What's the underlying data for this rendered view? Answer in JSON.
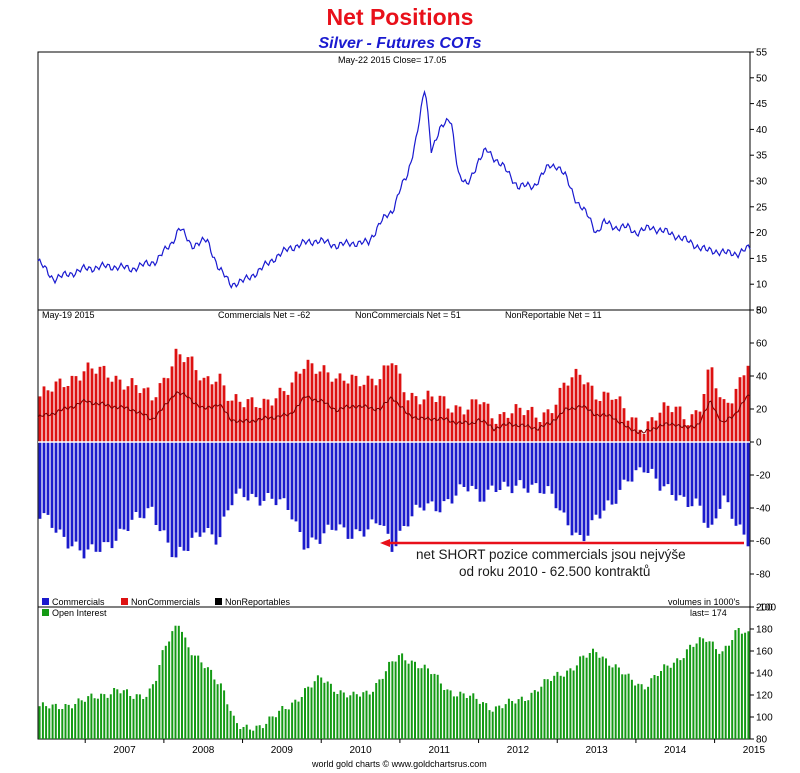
{
  "header": {
    "title": "Net Positions",
    "subtitle": "Silver - Futures COTs"
  },
  "colors": {
    "title": "#e8101a",
    "subtitle": "#1a1ad0",
    "price_line": "#1a1ad0",
    "commercials": "#1a1acc",
    "noncommercials": "#dd1111",
    "nonreportables": "#000000",
    "open_interest": "#149a14",
    "annotation": "#e8101a"
  },
  "chart_data": [
    {
      "type": "line",
      "panel": "price",
      "info": "May-22  2015   Close= 17.05",
      "ylim": [
        5,
        55
      ],
      "yticks": [
        "5",
        "10",
        "15",
        "20",
        "25",
        "30",
        "35",
        "40",
        "45",
        "50",
        "55"
      ],
      "x_years": [
        2006.4,
        2015.45
      ],
      "x": [
        2006.4,
        2006.6,
        2006.8,
        2007.0,
        2007.3,
        2007.6,
        2007.9,
        2008.1,
        2008.2,
        2008.35,
        2008.55,
        2008.7,
        2008.85,
        2009.0,
        2009.2,
        2009.4,
        2009.6,
        2009.8,
        2009.95,
        2010.2,
        2010.4,
        2010.6,
        2010.75,
        2010.9,
        2011.0,
        2011.1,
        2011.2,
        2011.32,
        2011.4,
        2011.5,
        2011.65,
        2011.75,
        2011.85,
        2012.0,
        2012.1,
        2012.3,
        2012.5,
        2012.7,
        2012.9,
        2013.0,
        2013.1,
        2013.25,
        2013.4,
        2013.5,
        2013.6,
        2013.75,
        2013.9,
        2014.0,
        2014.2,
        2014.5,
        2014.7,
        2014.9,
        2015.0,
        2015.15,
        2015.3,
        2015.45
      ],
      "values": [
        14.5,
        11,
        12,
        13,
        13.5,
        13,
        14.5,
        18,
        21,
        17.5,
        18.5,
        13,
        10,
        10.5,
        12.5,
        15,
        17,
        18,
        18.5,
        17.5,
        18,
        18,
        22,
        24,
        28.5,
        31,
        38,
        48,
        36,
        40,
        42,
        31,
        29,
        34,
        36,
        33,
        29,
        29,
        33,
        33,
        31,
        26,
        23,
        20,
        22,
        21,
        21,
        20,
        21,
        19.5,
        18,
        16.5,
        16.5,
        16,
        16,
        17.05
      ]
    },
    {
      "type": "bar",
      "panel": "net_positions",
      "info": "May-19  2015",
      "labels": [
        "Commercials Net = -62",
        "NonCommercials Net = 51",
        "NonReportable Net = 11"
      ],
      "legend": [
        "Commercials",
        "NonCommercials",
        "NonReportables"
      ],
      "units": "volumes in 1000's",
      "ylim": [
        -100,
        80
      ],
      "yticks": [
        "-100",
        "-80",
        "-60",
        "-40",
        "-20",
        "0",
        "20",
        "40",
        "60",
        "80"
      ],
      "x": [
        2006.4,
        2006.6,
        2006.8,
        2007.0,
        2007.3,
        2007.6,
        2007.85,
        2008.0,
        2008.15,
        2008.3,
        2008.5,
        2008.7,
        2008.85,
        2009.0,
        2009.3,
        2009.6,
        2009.8,
        2010.0,
        2010.2,
        2010.4,
        2010.6,
        2010.75,
        2010.9,
        2011.1,
        2011.3,
        2011.5,
        2011.7,
        2011.9,
        2012.0,
        2012.2,
        2012.4,
        2012.55,
        2012.75,
        2012.9,
        2013.1,
        2013.3,
        2013.5,
        2013.7,
        2013.9,
        2014.1,
        2014.3,
        2014.5,
        2014.65,
        2014.8,
        2014.95,
        2015.1,
        2015.25,
        2015.4,
        2015.45
      ],
      "noncommercials": [
        27,
        32,
        38,
        45,
        40,
        36,
        25,
        38,
        55,
        50,
        36,
        42,
        25,
        22,
        26,
        30,
        50,
        45,
        35,
        40,
        38,
        36,
        50,
        30,
        25,
        26,
        22,
        20,
        25,
        15,
        20,
        18,
        15,
        20,
        35,
        40,
        30,
        28,
        15,
        10,
        18,
        20,
        15,
        20,
        45,
        20,
        30,
        48,
        51
      ],
      "commercials": [
        -45,
        -50,
        -60,
        -70,
        -60,
        -50,
        -40,
        -55,
        -72,
        -65,
        -50,
        -60,
        -38,
        -30,
        -35,
        -40,
        -62,
        -60,
        -50,
        -55,
        -55,
        -48,
        -62,
        -48,
        -40,
        -38,
        -32,
        -28,
        -35,
        -25,
        -30,
        -28,
        -25,
        -30,
        -50,
        -58,
        -45,
        -40,
        -20,
        -15,
        -28,
        -30,
        -35,
        -40,
        -58,
        -30,
        -45,
        -62,
        -62
      ],
      "annotation": [
        "net SHORT pozice commercials jsou nejvýše",
        "od roku 2010 - 62.500 kontraktů"
      ],
      "annotation_level": -65
    },
    {
      "type": "bar",
      "panel": "open_interest",
      "legend": [
        "Open Interest"
      ],
      "info": "last= 174",
      "ylim": [
        80,
        200
      ],
      "yticks": [
        "80",
        "100",
        "120",
        "140",
        "160",
        "180",
        "200"
      ],
      "x": [
        2006.4,
        2006.6,
        2006.8,
        2007.0,
        2007.2,
        2007.4,
        2007.6,
        2007.8,
        2007.9,
        2008.0,
        2008.1,
        2008.2,
        2008.3,
        2008.45,
        2008.6,
        2008.75,
        2008.9,
        2009.0,
        2009.2,
        2009.4,
        2009.6,
        2009.8,
        2010.0,
        2010.2,
        2010.4,
        2010.6,
        2010.75,
        2010.85,
        2011.0,
        2011.2,
        2011.4,
        2011.6,
        2011.8,
        2012.0,
        2012.2,
        2012.4,
        2012.6,
        2012.8,
        2013.0,
        2013.2,
        2013.3,
        2013.5,
        2013.7,
        2013.9,
        2014.1,
        2014.3,
        2014.5,
        2014.7,
        2014.9,
        2015.1,
        2015.3,
        2015.45
      ],
      "values": [
        110,
        108,
        112,
        115,
        120,
        125,
        118,
        122,
        135,
        160,
        175,
        188,
        165,
        150,
        140,
        128,
        95,
        88,
        92,
        100,
        110,
        125,
        135,
        125,
        118,
        122,
        135,
        145,
        155,
        150,
        140,
        125,
        120,
        115,
        108,
        112,
        118,
        128,
        138,
        145,
        152,
        160,
        148,
        135,
        128,
        140,
        150,
        165,
        170,
        160,
        178,
        174
      ]
    }
  ],
  "x_axis": {
    "years": [
      "2007",
      "2008",
      "2009",
      "2010",
      "2011",
      "2012",
      "2013",
      "2014",
      "2015"
    ]
  },
  "footer": "world gold charts © www.goldchartsrus.com"
}
